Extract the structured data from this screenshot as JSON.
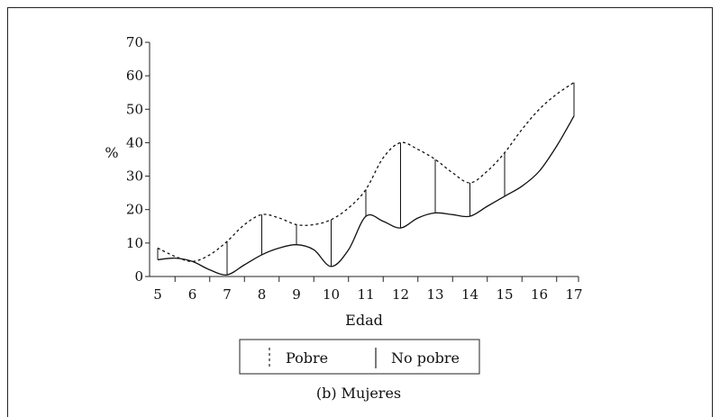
{
  "chart_data": {
    "type": "line",
    "ylabel": "%",
    "xlabel": "Edad",
    "caption": "(b) Mujeres",
    "ylim": [
      0,
      70
    ],
    "yticks": [
      0,
      10,
      20,
      30,
      40,
      50,
      60,
      70
    ],
    "xlim": [
      5,
      17
    ],
    "xticks": [
      5,
      6,
      7,
      8,
      9,
      10,
      11,
      12,
      13,
      14,
      15,
      16,
      17
    ],
    "series": [
      {
        "name": "Pobre",
        "style": "dashed",
        "x": [
          5,
          5.5,
          6,
          6.5,
          7,
          7.5,
          8,
          8.5,
          9,
          9.5,
          10,
          10.5,
          11,
          11.5,
          12,
          12.5,
          13,
          13.5,
          14,
          14.5,
          15,
          15.5,
          16,
          16.5,
          17
        ],
        "values": [
          8.5,
          6,
          4.5,
          6.5,
          10.5,
          15.5,
          18.5,
          17.5,
          15.5,
          15.5,
          17,
          20.5,
          26,
          35.5,
          40,
          38,
          35,
          31,
          28,
          31.5,
          37,
          44,
          50,
          54.5,
          58
        ]
      },
      {
        "name": "No pobre",
        "style": "solid",
        "x": [
          5,
          5.5,
          6,
          6.5,
          7,
          7.5,
          8,
          8.5,
          9,
          9.5,
          10,
          10.5,
          11,
          11.5,
          12,
          12.5,
          13,
          13.5,
          14,
          14.5,
          15,
          15.5,
          16,
          16.5,
          17
        ],
        "values": [
          5,
          5.5,
          4.5,
          2,
          0.5,
          3.5,
          6.5,
          8.5,
          9.5,
          8,
          3,
          8,
          18,
          16.5,
          14.5,
          17.5,
          19,
          18.5,
          18,
          21,
          24,
          27,
          31.5,
          39,
          48
        ]
      }
    ],
    "verticals": [
      {
        "x": 5,
        "low": 5,
        "high": 8.5
      },
      {
        "x": 6,
        "low": 4.5,
        "high": 4.5
      },
      {
        "x": 7,
        "low": 0.5,
        "high": 10.5
      },
      {
        "x": 8,
        "low": 6.5,
        "high": 18.5
      },
      {
        "x": 9,
        "low": 9.5,
        "high": 15.5
      },
      {
        "x": 10,
        "low": 3,
        "high": 17
      },
      {
        "x": 11,
        "low": 18,
        "high": 26
      },
      {
        "x": 12,
        "low": 14.5,
        "high": 40
      },
      {
        "x": 13,
        "low": 19,
        "high": 35
      },
      {
        "x": 14,
        "low": 18,
        "high": 28
      },
      {
        "x": 15,
        "low": 24,
        "high": 37
      },
      {
        "x": 17,
        "low": 48,
        "high": 58
      }
    ],
    "legend_position": "bottom-center",
    "grid": false
  }
}
